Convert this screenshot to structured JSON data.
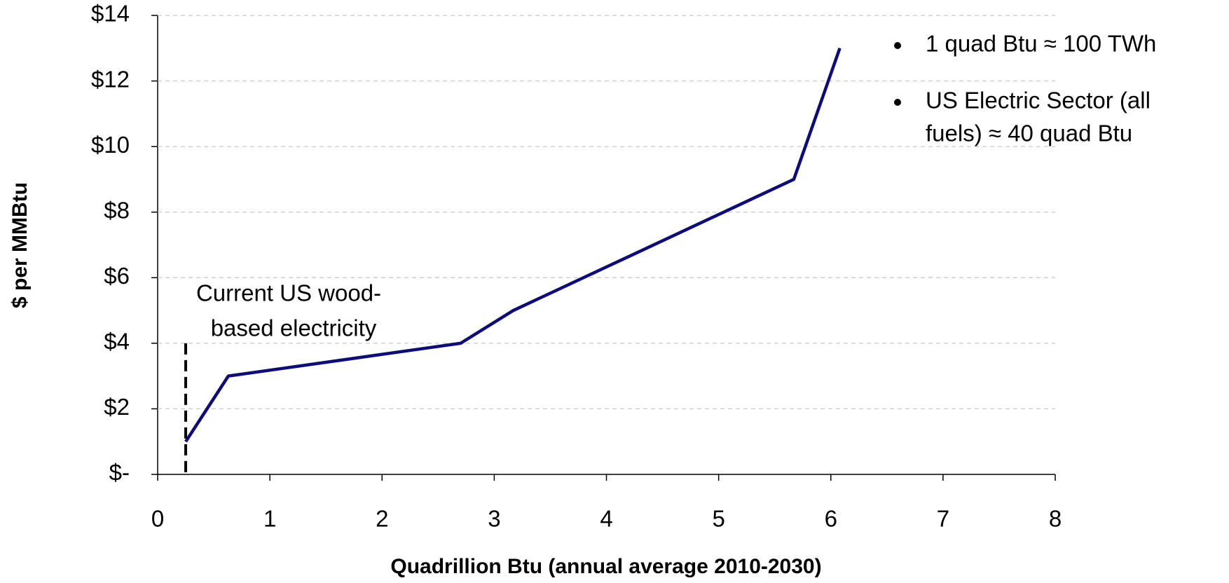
{
  "chart_data": {
    "type": "line",
    "x": [
      0.25,
      0.63,
      2.7,
      3.17,
      5.67,
      6.08
    ],
    "values": [
      1,
      3,
      4,
      5,
      9,
      13
    ],
    "color": "#0c0c80",
    "xlim": [
      0,
      8
    ],
    "xticks": [
      0,
      1,
      2,
      3,
      4,
      5,
      6,
      7,
      8
    ],
    "ylim": [
      0,
      14
    ],
    "yticks": [
      {
        "value": 0,
        "label": "$-"
      },
      {
        "value": 2,
        "label": "$2"
      },
      {
        "value": 4,
        "label": "$4"
      },
      {
        "value": 6,
        "label": "$6"
      },
      {
        "value": 8,
        "label": "$8"
      },
      {
        "value": 10,
        "label": "$10"
      },
      {
        "value": 12,
        "label": "$12"
      },
      {
        "value": 14,
        "label": "$14"
      }
    ],
    "grid": true,
    "x_label": "Quadrillion Btu (annual average 2010-2030)",
    "y_label": "$ per MMBtu",
    "marker": {
      "x": 0.25,
      "y": 4
    },
    "annotation": [
      "Current US wood-",
      "based electricity"
    ],
    "notes": [
      [
        "1 quad Btu ≈ 100 TWh"
      ],
      [
        "US Electric Sector (all",
        "fuels) ≈ 40 quad Btu"
      ]
    ]
  }
}
